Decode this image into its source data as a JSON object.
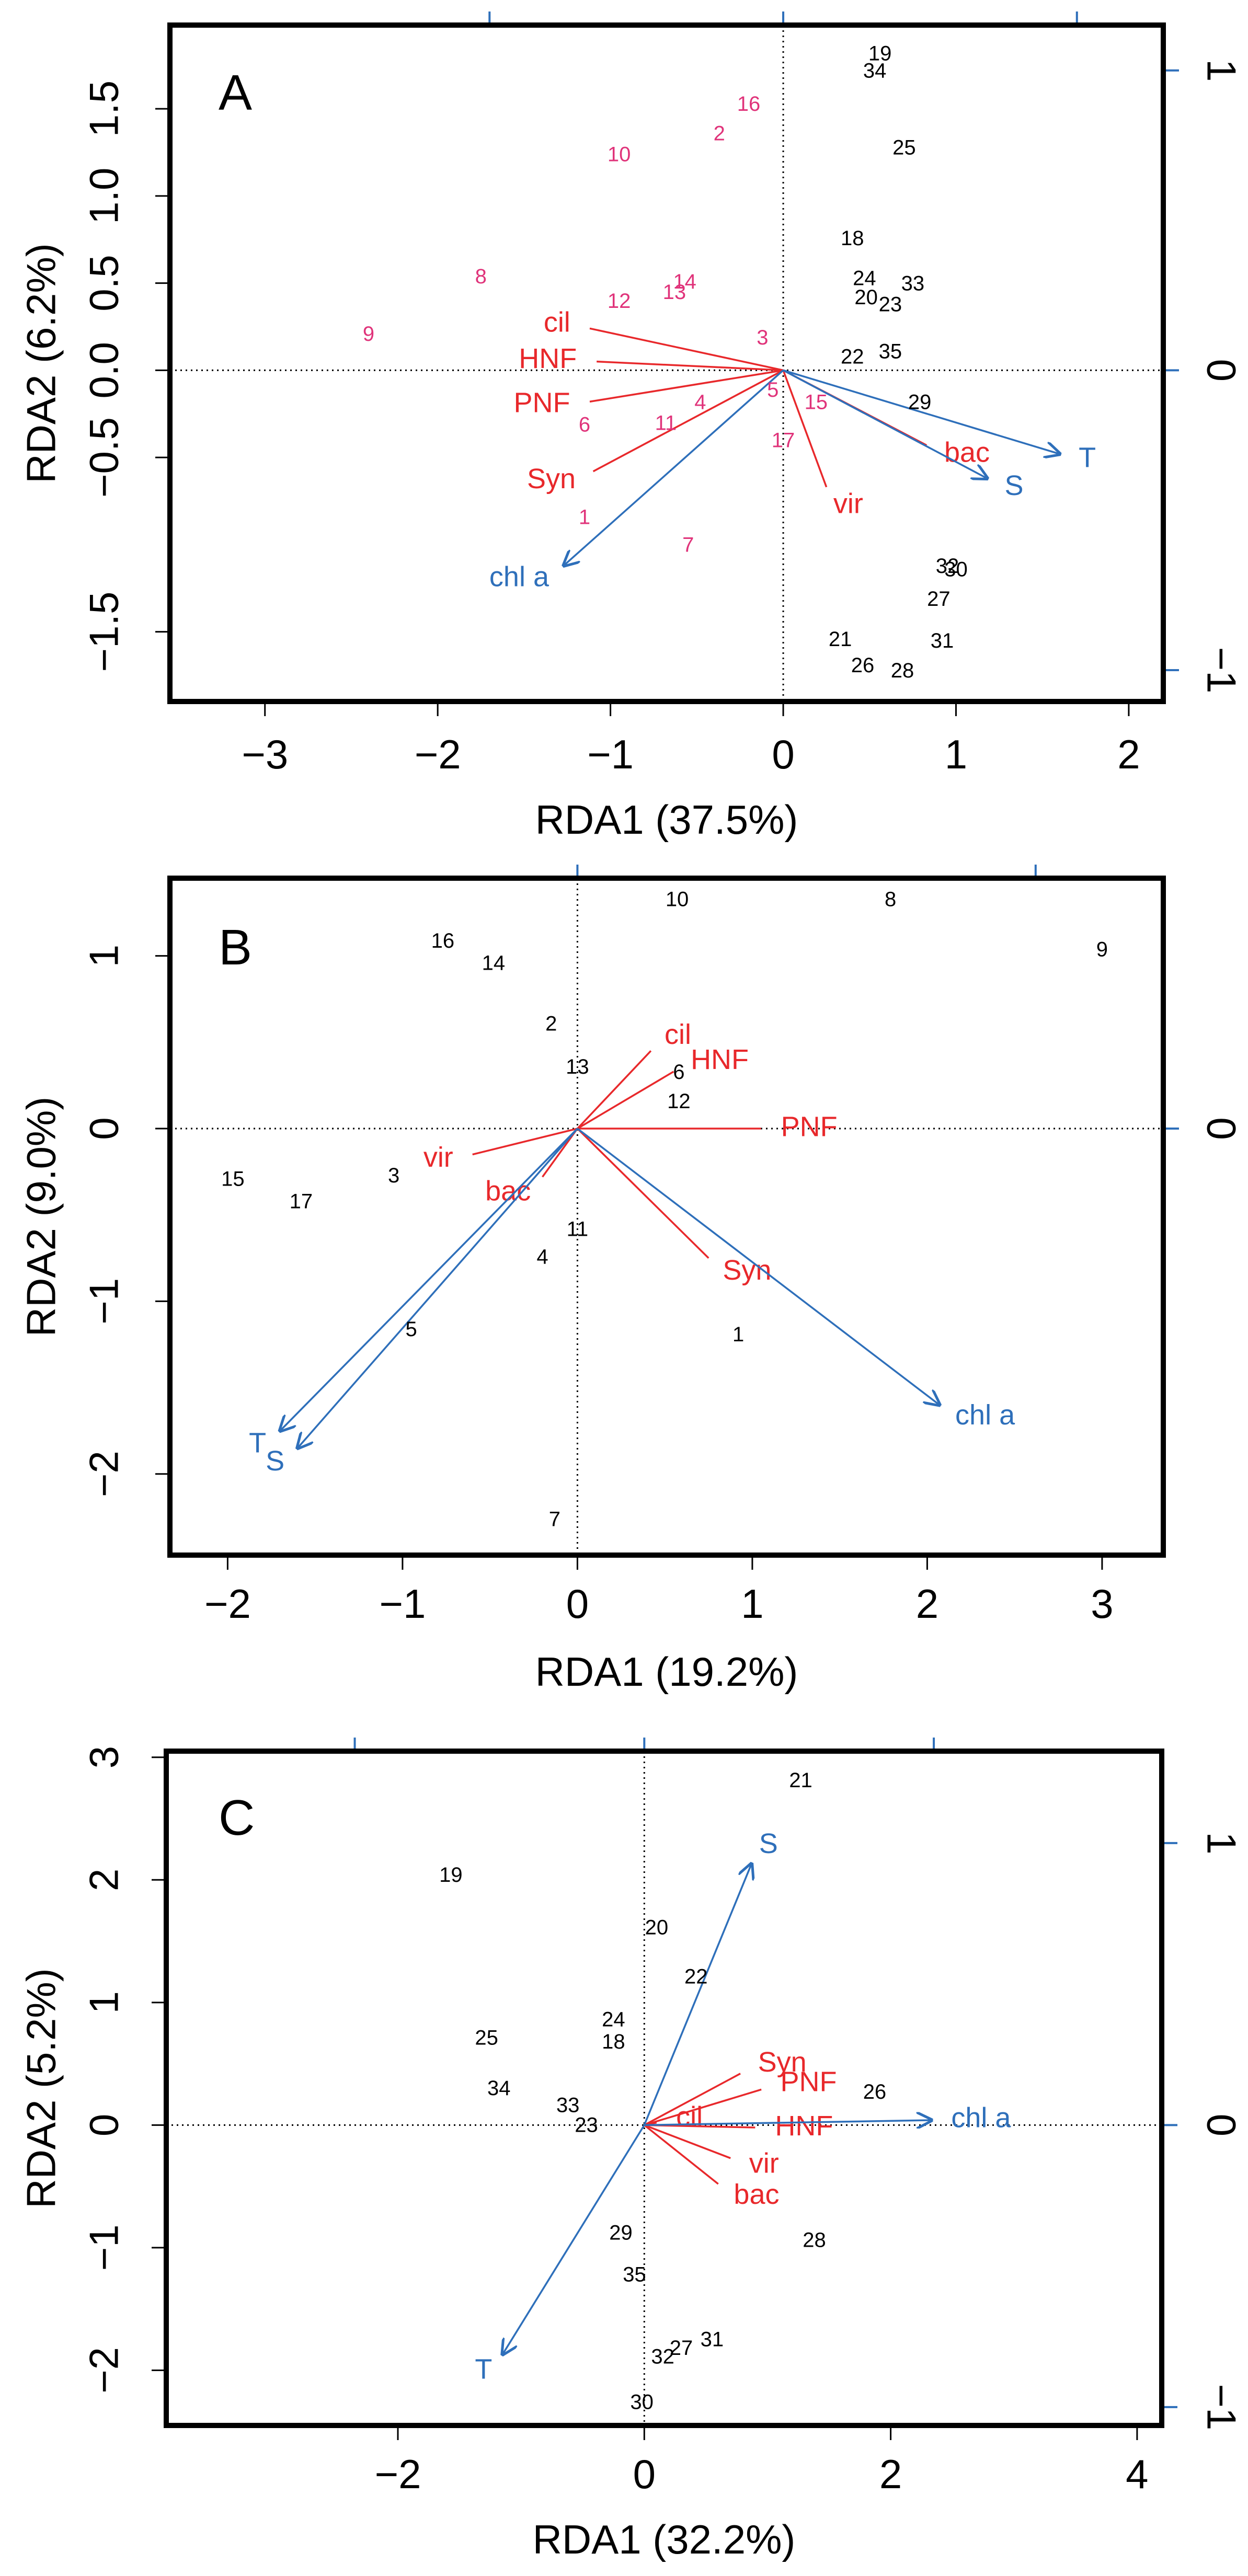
{
  "colors": {
    "sample_pink": "#e0337a",
    "sample_black": "#000000",
    "vector_red": "#e8282b",
    "vector_blue": "#2e6fba",
    "frame": "#000000",
    "secondary_axis": "#2e6fba"
  },
  "chart_data": [
    {
      "panel": "A",
      "type": "scatter",
      "title": "",
      "xlabel": "RDA1 (37.5%)",
      "ylabel": "RDA2 (6.2%)",
      "xlim": [
        -3.55,
        2.2
      ],
      "ylim": [
        -1.9,
        1.98
      ],
      "x_ticks": [
        -3,
        -2,
        -1,
        0,
        1,
        2
      ],
      "x_tick_labels": [
        "−3",
        "−2",
        "−1",
        "0",
        "1",
        "2"
      ],
      "y_ticks": [
        -1.5,
        -0.5,
        0,
        0.5,
        1,
        1.5
      ],
      "y_tick_labels": [
        "−1.5",
        "−0.5",
        "0.0",
        "0.5",
        "1.0",
        "1.5"
      ],
      "right_ticks": [
        1,
        0,
        -1
      ],
      "right_tick_labels": [
        "1",
        "0",
        "−1"
      ],
      "right_scale": 1.72,
      "top_ticks": [
        -1.7,
        0,
        1.7
      ],
      "samples": [
        {
          "label": "16",
          "x": -0.2,
          "y": 1.52,
          "group": "pink"
        },
        {
          "label": "2",
          "x": -0.37,
          "y": 1.35,
          "group": "pink"
        },
        {
          "label": "10",
          "x": -0.95,
          "y": 1.23,
          "group": "pink"
        },
        {
          "label": "8",
          "x": -1.75,
          "y": 0.53,
          "group": "pink"
        },
        {
          "label": "14",
          "x": -0.57,
          "y": 0.5,
          "group": "pink"
        },
        {
          "label": "13",
          "x": -0.63,
          "y": 0.44,
          "group": "pink"
        },
        {
          "label": "12",
          "x": -0.95,
          "y": 0.39,
          "group": "pink"
        },
        {
          "label": "9",
          "x": -2.4,
          "y": 0.2,
          "group": "pink"
        },
        {
          "label": "3",
          "x": -0.12,
          "y": 0.18,
          "group": "pink"
        },
        {
          "label": "5",
          "x": -0.06,
          "y": -0.12,
          "group": "pink"
        },
        {
          "label": "4",
          "x": -0.48,
          "y": -0.19,
          "group": "pink"
        },
        {
          "label": "15",
          "x": 0.19,
          "y": -0.19,
          "group": "pink"
        },
        {
          "label": "6",
          "x": -1.15,
          "y": -0.32,
          "group": "pink"
        },
        {
          "label": "11",
          "x": -0.68,
          "y": -0.31,
          "group": "pink"
        },
        {
          "label": "17",
          "x": 0,
          "y": -0.41,
          "group": "pink"
        },
        {
          "label": "1",
          "x": -1.15,
          "y": -0.85,
          "group": "pink"
        },
        {
          "label": "7",
          "x": -0.55,
          "y": -1.01,
          "group": "pink"
        },
        {
          "label": "19",
          "x": 0.56,
          "y": 1.81,
          "group": "black"
        },
        {
          "label": "34",
          "x": 0.53,
          "y": 1.71,
          "group": "black"
        },
        {
          "label": "25",
          "x": 0.7,
          "y": 1.27,
          "group": "black"
        },
        {
          "label": "18",
          "x": 0.4,
          "y": 0.75,
          "group": "black"
        },
        {
          "label": "24",
          "x": 0.47,
          "y": 0.52,
          "group": "black"
        },
        {
          "label": "33",
          "x": 0.75,
          "y": 0.49,
          "group": "black"
        },
        {
          "label": "20",
          "x": 0.48,
          "y": 0.41,
          "group": "black"
        },
        {
          "label": "23",
          "x": 0.62,
          "y": 0.37,
          "group": "black"
        },
        {
          "label": "22",
          "x": 0.4,
          "y": 0.07,
          "group": "black"
        },
        {
          "label": "35",
          "x": 0.62,
          "y": 0.1,
          "group": "black"
        },
        {
          "label": "29",
          "x": 0.79,
          "y": -0.19,
          "group": "black"
        },
        {
          "label": "32",
          "x": 0.95,
          "y": -1.13,
          "group": "black"
        },
        {
          "label": "30",
          "x": 1.0,
          "y": -1.15,
          "group": "black"
        },
        {
          "label": "27",
          "x": 0.9,
          "y": -1.32,
          "group": "black"
        },
        {
          "label": "21",
          "x": 0.33,
          "y": -1.55,
          "group": "black"
        },
        {
          "label": "31",
          "x": 0.92,
          "y": -1.56,
          "group": "black"
        },
        {
          "label": "26",
          "x": 0.46,
          "y": -1.7,
          "group": "black"
        },
        {
          "label": "28",
          "x": 0.69,
          "y": -1.73,
          "group": "black"
        }
      ],
      "vectors": [
        {
          "label": "cil",
          "x": -1.12,
          "y": 0.24,
          "color": "red",
          "head": false
        },
        {
          "label": "HNF",
          "x": -1.08,
          "y": 0.05,
          "color": "red",
          "head": false
        },
        {
          "label": "PNF",
          "x": -1.12,
          "y": -0.18,
          "color": "red",
          "head": false
        },
        {
          "label": "Syn",
          "x": -1.1,
          "y": -0.58,
          "color": "red",
          "head": false
        },
        {
          "label": "vir",
          "x": 0.25,
          "y": -0.67,
          "color": "red",
          "head": false
        },
        {
          "label": "bac",
          "x": 0.83,
          "y": -0.43,
          "color": "red",
          "head": false
        },
        {
          "label": "chl a",
          "x": -1.27,
          "y": -1.12,
          "color": "blue",
          "head": true
        },
        {
          "label": "S",
          "x": 1.18,
          "y": -0.62,
          "color": "blue",
          "head": true
        },
        {
          "label": "T",
          "x": 1.6,
          "y": -0.48,
          "color": "blue",
          "head": true
        }
      ]
    },
    {
      "panel": "B",
      "type": "scatter",
      "title": "",
      "xlabel": "RDA1 (19.2%)",
      "ylabel": "RDA2 (9.0%)",
      "xlim": [
        -2.33,
        3.35
      ],
      "ylim": [
        -2.47,
        1.45
      ],
      "x_ticks": [
        -2,
        -1,
        0,
        1,
        2,
        3
      ],
      "x_tick_labels": [
        "−2",
        "−1",
        "0",
        "1",
        "2",
        "3"
      ],
      "y_ticks": [
        -2,
        -1,
        0,
        1
      ],
      "y_tick_labels": [
        "−2",
        "−1",
        "0",
        "1"
      ],
      "right_ticks": [
        0
      ],
      "right_tick_labels": [
        "0"
      ],
      "right_scale": 1.0,
      "top_ticks": [
        0,
        2.62
      ],
      "samples": [
        {
          "label": "10",
          "x": 0.57,
          "y": 1.32
        },
        {
          "label": "8",
          "x": 1.79,
          "y": 1.32
        },
        {
          "label": "9",
          "x": 3.0,
          "y": 1.03
        },
        {
          "label": "16",
          "x": -0.77,
          "y": 1.08
        },
        {
          "label": "14",
          "x": -0.48,
          "y": 0.95
        },
        {
          "label": "2",
          "x": -0.15,
          "y": 0.6
        },
        {
          "label": "13",
          "x": 0.0,
          "y": 0.35
        },
        {
          "label": "6",
          "x": 0.58,
          "y": 0.32
        },
        {
          "label": "12",
          "x": 0.58,
          "y": 0.15
        },
        {
          "label": "15",
          "x": -1.97,
          "y": -0.3
        },
        {
          "label": "17",
          "x": -1.58,
          "y": -0.43
        },
        {
          "label": "3",
          "x": -1.05,
          "y": -0.28
        },
        {
          "label": "11",
          "x": 0.0,
          "y": -0.59
        },
        {
          "label": "4",
          "x": -0.2,
          "y": -0.75
        },
        {
          "label": "5",
          "x": -0.95,
          "y": -1.17
        },
        {
          "label": "1",
          "x": 0.92,
          "y": -1.2
        },
        {
          "label": "7",
          "x": -0.13,
          "y": -2.27
        }
      ],
      "vectors": [
        {
          "label": "cil",
          "x": 0.42,
          "y": 0.45,
          "color": "red",
          "head": false
        },
        {
          "label": "HNF",
          "x": 0.55,
          "y": 0.33,
          "color": "red",
          "head": false
        },
        {
          "label": "PNF",
          "x": 1.05,
          "y": 0.0,
          "color": "red",
          "head": false
        },
        {
          "label": "vir",
          "x": -0.6,
          "y": -0.15,
          "color": "red",
          "head": false
        },
        {
          "label": "bac",
          "x": -0.2,
          "y": -0.28,
          "color": "red",
          "head": false
        },
        {
          "label": "Syn",
          "x": 0.75,
          "y": -0.75,
          "color": "red",
          "head": false
        },
        {
          "label": "T",
          "x": -1.7,
          "y": -1.75,
          "color": "blue",
          "head": true
        },
        {
          "label": "S",
          "x": -1.6,
          "y": -1.85,
          "color": "blue",
          "head": true
        },
        {
          "label": "chl a",
          "x": 2.07,
          "y": -1.6,
          "color": "blue",
          "head": true
        }
      ]
    },
    {
      "panel": "C",
      "type": "scatter",
      "title": "",
      "xlabel": "RDA1 (32.2%)",
      "ylabel": "RDA2 (5.2%)",
      "xlim": [
        -3.88,
        4.2
      ],
      "ylim": [
        -2.45,
        3.05
      ],
      "x_ticks": [
        -2,
        0,
        2,
        4
      ],
      "x_tick_labels": [
        "−2",
        "0",
        "2",
        "4"
      ],
      "y_ticks": [
        -2,
        -1,
        0,
        1,
        2,
        3
      ],
      "y_tick_labels": [
        "−2",
        "−1",
        "0",
        "1",
        "2",
        "3"
      ],
      "right_ticks": [
        1,
        0,
        -1
      ],
      "right_tick_labels": [
        "1",
        "0",
        "−1"
      ],
      "right_scale": 2.3,
      "top_ticks": [
        -2.35,
        0,
        2.35
      ],
      "samples": [
        {
          "label": "21",
          "x": 1.27,
          "y": 2.8
        },
        {
          "label": "19",
          "x": -1.57,
          "y": 2.03
        },
        {
          "label": "20",
          "x": 0.1,
          "y": 1.6
        },
        {
          "label": "22",
          "x": 0.42,
          "y": 1.2
        },
        {
          "label": "24",
          "x": -0.25,
          "y": 0.85
        },
        {
          "label": "18",
          "x": -0.25,
          "y": 0.67
        },
        {
          "label": "25",
          "x": -1.28,
          "y": 0.7
        },
        {
          "label": "34",
          "x": -1.18,
          "y": 0.29
        },
        {
          "label": "26",
          "x": 1.87,
          "y": 0.26
        },
        {
          "label": "33",
          "x": -0.62,
          "y": 0.15
        },
        {
          "label": "23",
          "x": -0.47,
          "y": -0.01
        },
        {
          "label": "29",
          "x": -0.19,
          "y": -0.89
        },
        {
          "label": "28",
          "x": 1.38,
          "y": -0.95
        },
        {
          "label": "35",
          "x": -0.08,
          "y": -1.23
        },
        {
          "label": "31",
          "x": 0.55,
          "y": -1.76
        },
        {
          "label": "27",
          "x": 0.3,
          "y": -1.83
        },
        {
          "label": "32",
          "x": 0.15,
          "y": -1.9
        },
        {
          "label": "30",
          "x": -0.02,
          "y": -2.27
        }
      ],
      "vectors": [
        {
          "label": "Syn",
          "x": 0.78,
          "y": 0.42,
          "color": "red",
          "head": false
        },
        {
          "label": "PNF",
          "x": 0.95,
          "y": 0.29,
          "color": "red",
          "head": false
        },
        {
          "label": "HNF",
          "x": 0.9,
          "y": -0.02,
          "color": "red",
          "head": false
        },
        {
          "label": "vir",
          "x": 0.7,
          "y": -0.27,
          "color": "red",
          "head": false
        },
        {
          "label": "bac",
          "x": 0.6,
          "y": -0.48,
          "color": "red",
          "head": false
        },
        {
          "label": "cil",
          "x": 0.1,
          "y": 0.02,
          "color": "red",
          "head": false
        },
        {
          "label": "S",
          "x": 0.87,
          "y": 2.13,
          "color": "blue",
          "head": true
        },
        {
          "label": "chl a",
          "x": 2.33,
          "y": 0.04,
          "color": "blue",
          "head": true
        },
        {
          "label": "T",
          "x": -1.15,
          "y": -1.87,
          "color": "blue",
          "head": true
        }
      ]
    }
  ]
}
